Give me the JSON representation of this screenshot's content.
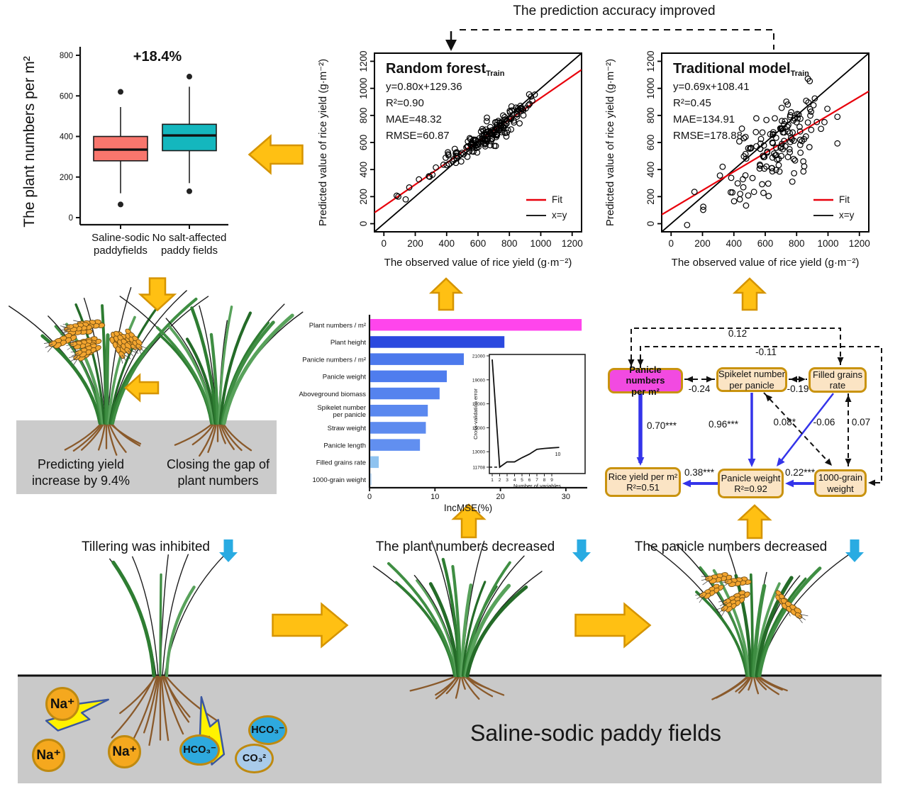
{
  "annotations": {
    "top": "The prediction accuracy improved",
    "predict_line1": "Predicting yield",
    "predict_line2": "increase by 9.4%",
    "closing_line1": "Closing the gap of",
    "closing_line2": "plant numbers",
    "tillering": "Tillering was inhibited",
    "plant_numbers_decreased": "The plant numbers decreased",
    "panicle_numbers_decreased": "The panicle numbers decreased",
    "soil_title": "Saline-sodic paddy fields"
  },
  "colors": {
    "flow_arrow_fill": "#FFC013",
    "flow_arrow_stroke": "#D59400",
    "decrease_arrow": "#29ABE2",
    "soil_gray": "#C9C9C9",
    "mid_soil_gray": "#CBCBCB",
    "lightning_fill": "#FFF200",
    "lightning_stroke": "#3A57A0",
    "sem_blue": "#3434EA",
    "fit_red": "#E8000B"
  },
  "ions": [
    {
      "id": "na-1",
      "label": "Na⁺",
      "fill": "#F5A81E"
    },
    {
      "id": "na-2",
      "label": "Na⁺",
      "fill": "#F5A81E"
    },
    {
      "id": "na-3",
      "label": "Na⁺",
      "fill": "#F5A81E"
    },
    {
      "id": "hco3-1",
      "label": "HCO₃⁻",
      "fill": "#2EA9DE"
    },
    {
      "id": "hco3-2",
      "label": "HCO₃⁻",
      "fill": "#2EA9DE"
    },
    {
      "id": "co3",
      "label": "CO₃²",
      "fill": "#A9CBEA"
    }
  ],
  "chart_data": [
    {
      "id": "boxplot",
      "type": "box",
      "title": "+18.4%",
      "ylabel": "The plant numbers per m²",
      "ylim": [
        0,
        800
      ],
      "yticks": [
        0,
        200,
        400,
        600,
        800
      ],
      "groups": [
        {
          "label1": "Saline-sodic",
          "label2": "paddyfields",
          "color": "#F8766D",
          "min": 120,
          "q1": 280,
          "median": 335,
          "q3": 400,
          "max": 545,
          "outliers": [
            65,
            620
          ]
        },
        {
          "label1": "No salt-affected",
          "label2": "paddy fields",
          "color": "#14B7BE",
          "min": 170,
          "q1": 330,
          "median": 405,
          "q3": 460,
          "max": 645,
          "outliers": [
            130,
            695
          ]
        }
      ]
    },
    {
      "id": "rf-scatter",
      "type": "scatter",
      "title": "Random forest",
      "title_sub": "Train",
      "stats": [
        "y=0.80x+129.36",
        "R²=0.90",
        "MAE=48.32",
        "RMSE=60.87"
      ],
      "slope": 0.8,
      "intercept": 129.36,
      "noise_sd": 40,
      "n": 175,
      "xlabel": "The observed value of rice yield  (g·m⁻²)",
      "ylabel": "Predicted value of rice yield  (g·m⁻²)",
      "xlim": [
        0,
        1200
      ],
      "ylim": [
        0,
        1200
      ],
      "ticks": [
        0,
        200,
        400,
        600,
        800,
        1000,
        1200
      ],
      "legend": [
        {
          "label": "Fit",
          "color": "#E8000B"
        },
        {
          "label": "x=y",
          "color": "#000000"
        }
      ]
    },
    {
      "id": "trad-scatter",
      "type": "scatter",
      "title": "Traditional model",
      "title_sub": "Train",
      "stats": [
        "y=0.69x+108.41",
        "R²=0.45",
        "MAE=134.91",
        "RMSE=178.88"
      ],
      "slope": 0.69,
      "intercept": 108.41,
      "noise_sd": 140,
      "n": 150,
      "xlabel": "The observed value of rice yield  (g·m⁻²)",
      "ylabel": "Predicted value of rice yield  (g·m⁻²)",
      "xlim": [
        0,
        1200
      ],
      "ylim": [
        0,
        1200
      ],
      "ticks": [
        0,
        200,
        400,
        600,
        800,
        1000,
        1200
      ],
      "legend": [
        {
          "label": "Fit",
          "color": "#E8000B"
        },
        {
          "label": "x=y",
          "color": "#000000"
        }
      ]
    },
    {
      "id": "importance",
      "type": "bar",
      "xlabel": "IncMSE(%)",
      "xticks": [
        0,
        10,
        20,
        30
      ],
      "categories": [
        "Plant numbers / m²",
        "Plant height",
        "Panicle numbers / m²",
        "Panicle weight",
        "Aboveground biomass",
        "Spikelet number|per panicle",
        "Straw weight",
        "Panicle length",
        "Filled grains rate",
        "1000-grain weight"
      ],
      "values": [
        32.3,
        20.5,
        14.3,
        11.7,
        10.6,
        8.8,
        8.5,
        7.6,
        1.3,
        0.2
      ],
      "colors": [
        "#FF45EC",
        "#2B49DF",
        "#4C79EC",
        "#4F7DEE",
        "#5583EE",
        "#5A88EF",
        "#5D8BEF",
        "#618FF0",
        "#8FC3F0",
        "#BCD8F4"
      ]
    },
    {
      "id": "cv-inset",
      "type": "line",
      "xlabel": "Number of variables",
      "ylabel": "Cross-validation error",
      "xticks": [
        1,
        2,
        3,
        4,
        5,
        6,
        7,
        8,
        9
      ],
      "yticks": [
        21000,
        19000,
        17000,
        15000,
        13000
      ],
      "min_label": "11708",
      "x": [
        1,
        2,
        3,
        4,
        5,
        6,
        7,
        8,
        9,
        10
      ],
      "y": [
        20700,
        11708,
        12150,
        12150,
        12500,
        12800,
        13200,
        13270,
        13320,
        13360
      ],
      "annotation": "10"
    }
  ],
  "sem": {
    "nodes": [
      {
        "id": "pn",
        "label1": "Panicle numbers",
        "label2": "per m²",
        "magenta": true
      },
      {
        "id": "sn",
        "label1": "Spikelet number",
        "label2": "per panicle",
        "magenta": false
      },
      {
        "id": "fg",
        "label1": "Filled grains",
        "label2": "rate",
        "magenta": false
      },
      {
        "id": "ry",
        "label1": "Rice yield per m²",
        "label2": "R²=0.51",
        "magenta": false
      },
      {
        "id": "pw",
        "label1": "Panicle weight",
        "label2": "R²=0.92",
        "magenta": false
      },
      {
        "id": "tg",
        "label1": "1000-grain",
        "label2": "weight",
        "magenta": false
      }
    ],
    "edges": [
      {
        "from": "pn",
        "to": "fg",
        "label": "0.12",
        "style": "dashed"
      },
      {
        "from": "pn",
        "to": "tg",
        "label": "-0.11",
        "style": "dashed"
      },
      {
        "from": "pn",
        "to": "sn",
        "label": "-0.24",
        "style": "dashed"
      },
      {
        "from": "sn",
        "to": "fg",
        "label": "-0.19",
        "style": "dashed"
      },
      {
        "from": "pn",
        "to": "ry",
        "label": "0.70***",
        "style": "solid"
      },
      {
        "from": "sn",
        "to": "pw",
        "label": "0.96***",
        "style": "solid"
      },
      {
        "from": "fg",
        "to": "pw",
        "label": "0.08*",
        "style": "solid"
      },
      {
        "from": "sn",
        "to": "tg",
        "label": "-0.06",
        "style": "dashed"
      },
      {
        "from": "fg",
        "to": "tg",
        "label": "0.07",
        "style": "dashed"
      },
      {
        "from": "tg",
        "to": "pw",
        "label": "0.22***",
        "style": "solid"
      },
      {
        "from": "pw",
        "to": "ry",
        "label": "0.38***",
        "style": "solid"
      }
    ]
  }
}
